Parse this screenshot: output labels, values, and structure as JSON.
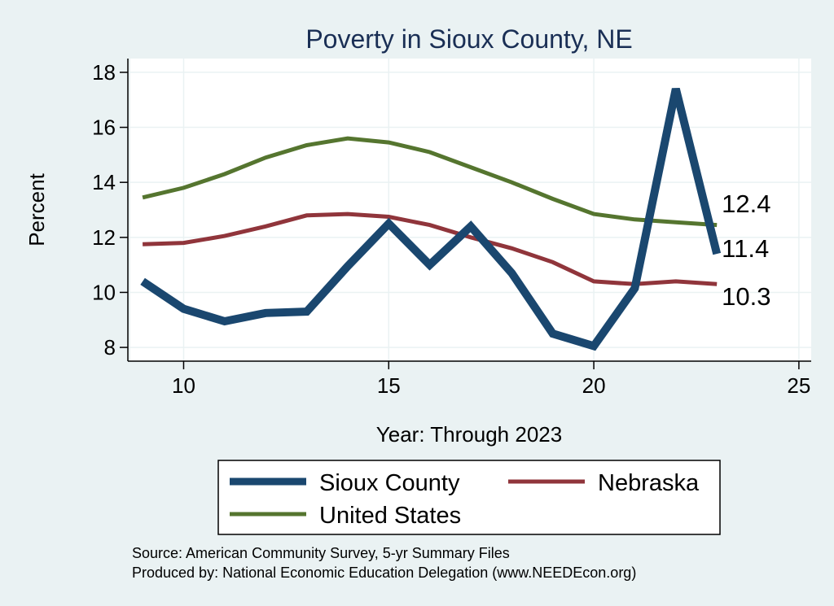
{
  "chart_data": {
    "type": "line",
    "title": "Poverty in Sioux County, NE",
    "xlabel": "Year: Through 2023",
    "ylabel": "Percent",
    "xlim": [
      8.7,
      25.3
    ],
    "ylim": [
      7.5,
      18.5
    ],
    "xticks": [
      10,
      15,
      20,
      25
    ],
    "yticks": [
      8,
      10,
      12,
      14,
      16,
      18
    ],
    "grid": true,
    "legend_position": "bottom",
    "series": [
      {
        "name": "Sioux County",
        "color": "#1a476f",
        "x": [
          9,
          10,
          11,
          12,
          13,
          14,
          15,
          16,
          17,
          18,
          19,
          20,
          21,
          22,
          23
        ],
        "y": [
          10.4,
          9.4,
          8.95,
          9.25,
          9.3,
          10.95,
          12.5,
          11.0,
          12.4,
          10.7,
          8.5,
          8.05,
          10.15,
          17.4,
          11.4
        ],
        "end_label": "11.4"
      },
      {
        "name": "Nebraska",
        "color": "#90353b",
        "x": [
          9,
          10,
          11,
          12,
          13,
          14,
          15,
          16,
          17,
          18,
          19,
          20,
          21,
          22,
          23
        ],
        "y": [
          11.75,
          11.8,
          12.05,
          12.4,
          12.8,
          12.85,
          12.75,
          12.45,
          12.0,
          11.6,
          11.1,
          10.4,
          10.3,
          10.4,
          10.3
        ],
        "end_label": "10.3"
      },
      {
        "name": "United States",
        "color": "#55752f",
        "x": [
          9,
          10,
          11,
          12,
          13,
          14,
          15,
          16,
          17,
          18,
          19,
          20,
          21,
          22,
          23
        ],
        "y": [
          13.45,
          13.8,
          14.3,
          14.9,
          15.35,
          15.6,
          15.45,
          15.1,
          14.55,
          14.0,
          13.4,
          12.85,
          12.65,
          12.55,
          12.45
        ],
        "end_label": "12.4"
      }
    ],
    "notes": [
      "Source: American Community Survey, 5-yr Summary Files",
      "Produced by: National Economic Education Delegation (www.NEEDEcon.org)"
    ]
  }
}
